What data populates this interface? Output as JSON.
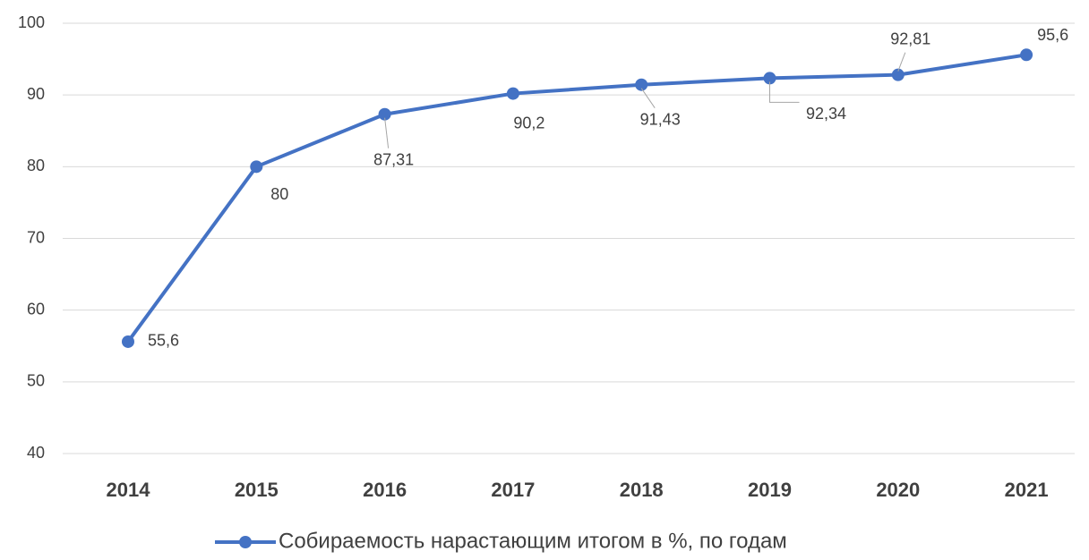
{
  "chart_data": {
    "type": "line",
    "categories": [
      "2014",
      "2015",
      "2016",
      "2017",
      "2018",
      "2019",
      "2020",
      "2021"
    ],
    "series": [
      {
        "name": "Собираемость нарастающим итогом в %, по годам",
        "color": "#4472c4",
        "values": [
          55.6,
          80,
          87.31,
          90.2,
          91.43,
          92.34,
          92.81,
          95.6
        ],
        "value_labels": [
          "55,6",
          "80",
          "87,31",
          "90,2",
          "91,43",
          "92,34",
          "92,81",
          "95,6"
        ]
      }
    ],
    "ylim": [
      40,
      100
    ],
    "yticks": [
      40,
      50,
      60,
      70,
      80,
      90,
      100
    ],
    "grid": true,
    "legend": "bottom"
  }
}
